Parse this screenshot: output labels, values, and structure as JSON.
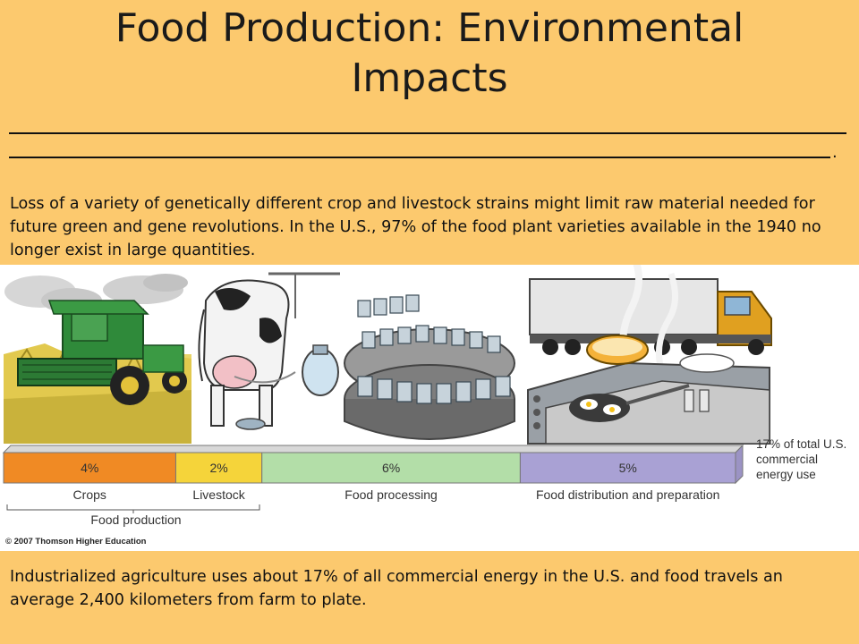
{
  "slide": {
    "title_line1": "Food Production: Environmental",
    "title_line2": "Impacts",
    "blank_end": ".",
    "paragraph1": "Loss of a variety of genetically different crop and livestock strains might limit raw material needed for future green and gene revolutions.  In the U.S., 97% of the food plant varieties available in the 1940 no longer exist in large quantities.",
    "paragraph2": "Industrialized agriculture uses about 17% of all commercial energy in the U.S. and food travels an average 2,400 kilometers from farm to plate."
  },
  "figure": {
    "copyright": "© 2007 Thomson Higher Education",
    "total_label_lines": [
      "17% of total U.S.",
      "commercial",
      "energy use"
    ],
    "group_label": "Food production",
    "colors": {
      "crops": "#f08a24",
      "livestock": "#f5d43a",
      "processing": "#b3dea8",
      "distribution": "#a9a1d4"
    }
  },
  "chart_data": {
    "type": "bar",
    "orientation": "horizontal-stacked",
    "categories": [
      "Crops",
      "Livestock",
      "Food processing",
      "Food distribution and preparation"
    ],
    "values": [
      4,
      2,
      6,
      5
    ],
    "value_labels": [
      "4%",
      "2%",
      "6%",
      "5%"
    ],
    "unit": "%",
    "total": 17
  }
}
